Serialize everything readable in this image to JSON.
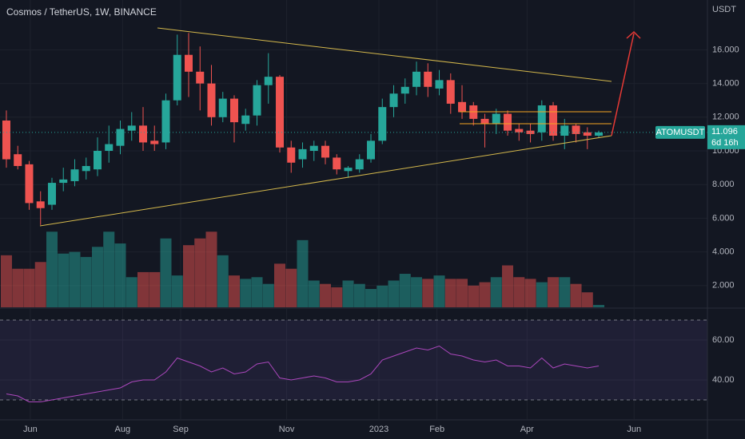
{
  "chart_data": [
    {
      "type": "candlestick",
      "title": "Cosmos / TetherUS, 1W, BINANCE",
      "axis_label": "USDT",
      "categories": [
        null,
        null,
        null,
        null,
        null,
        null,
        null,
        null,
        null,
        null,
        null,
        null,
        null,
        null,
        null,
        null,
        null,
        null,
        null,
        null,
        null,
        null,
        null,
        null,
        null,
        null,
        null,
        null,
        null,
        null,
        null,
        null,
        null,
        null,
        null,
        null,
        null,
        null,
        null,
        null,
        null,
        null,
        null,
        null,
        null,
        null,
        null,
        null,
        null,
        null,
        null,
        null,
        null
      ],
      "open": [
        11.8,
        9.8,
        9.2,
        7.0,
        6.8,
        8.1,
        8.2,
        8.8,
        8.9,
        10.0,
        10.3,
        11.2,
        11.5,
        10.6,
        10.5,
        13.0,
        15.7,
        14.7,
        14.0,
        12.0,
        13.1,
        11.6,
        12.1,
        13.9,
        14.4,
        10.2,
        9.5,
        10.0,
        10.3,
        9.6,
        8.8,
        8.9,
        9.5,
        10.6,
        12.6,
        13.4,
        13.8,
        14.7,
        13.7,
        14.2,
        12.9,
        12.7,
        11.9,
        11.6,
        12.2,
        11.3,
        11.2,
        11.1,
        12.7,
        10.9,
        11.5,
        11.1,
        10.9
      ],
      "high": [
        12.4,
        10.3,
        9.4,
        7.6,
        8.4,
        9.0,
        9.5,
        9.6,
        10.8,
        11.5,
        11.8,
        12.3,
        12.6,
        11.5,
        13.4,
        16.9,
        17.0,
        16.2,
        15.1,
        13.5,
        13.3,
        12.5,
        14.2,
        15.8,
        14.5,
        10.6,
        10.5,
        10.6,
        10.6,
        9.8,
        9.1,
        9.8,
        11.0,
        13.1,
        13.9,
        14.3,
        15.3,
        15.2,
        14.8,
        14.6,
        13.9,
        12.9,
        12.2,
        12.5,
        12.4,
        11.6,
        11.6,
        13.0,
        12.9,
        11.9,
        11.6,
        11.4,
        11.2
      ],
      "low": [
        9.0,
        8.9,
        6.5,
        5.6,
        6.5,
        7.6,
        7.9,
        8.3,
        8.5,
        9.3,
        9.8,
        10.6,
        10.0,
        10.0,
        10.1,
        12.7,
        13.2,
        12.4,
        11.5,
        11.7,
        10.5,
        11.2,
        11.5,
        12.8,
        9.9,
        8.7,
        9.0,
        9.4,
        9.2,
        8.6,
        8.4,
        8.7,
        9.3,
        10.4,
        12.0,
        12.8,
        13.3,
        13.2,
        13.3,
        12.2,
        11.9,
        11.5,
        10.2,
        11.0,
        10.9,
        10.6,
        10.5,
        10.6,
        10.6,
        10.1,
        10.5,
        10.1,
        10.8
      ],
      "close": [
        9.5,
        9.1,
        6.9,
        6.6,
        8.1,
        8.3,
        8.9,
        9.1,
        10.0,
        10.4,
        11.3,
        11.5,
        10.5,
        10.4,
        13.0,
        15.7,
        14.7,
        14.0,
        12.0,
        13.1,
        11.7,
        12.1,
        13.9,
        14.4,
        10.2,
        9.3,
        10.1,
        10.3,
        9.6,
        8.9,
        9.0,
        9.5,
        10.6,
        12.6,
        13.4,
        13.8,
        14.7,
        13.8,
        14.2,
        12.8,
        12.3,
        11.9,
        11.6,
        12.2,
        11.2,
        11.1,
        11.0,
        12.7,
        10.9,
        11.5,
        11.0,
        10.9,
        11.096
      ],
      "volume": [
        3.8,
        3.0,
        3.0,
        3.4,
        5.2,
        3.9,
        4.0,
        3.7,
        4.3,
        5.2,
        4.5,
        2.5,
        2.8,
        2.8,
        4.8,
        2.6,
        4.4,
        4.8,
        5.2,
        3.8,
        2.6,
        2.4,
        2.5,
        2.1,
        3.3,
        3.0,
        4.7,
        2.3,
        2.1,
        1.9,
        2.3,
        2.1,
        1.8,
        2.0,
        2.3,
        2.7,
        2.5,
        2.4,
        2.6,
        2.4,
        2.4,
        2.0,
        2.2,
        2.5,
        3.2,
        2.5,
        2.4,
        2.2,
        2.5,
        2.5,
        2.1,
        1.6,
        0.85
      ],
      "up_color": "#26a69a",
      "down_color": "#ef5350",
      "last_price": 11.096,
      "last_price_label": "11.096",
      "symbol": "ATOMUSDT",
      "countdown": "6d 16h",
      "xlim": [
        -0.56,
        61.54
      ],
      "xticks": [
        {
          "value": 2.1,
          "label": "Jun"
        },
        {
          "value": 10.2,
          "label": "Aug"
        },
        {
          "value": 15.3,
          "label": "Sep"
        },
        {
          "value": 24.6,
          "label": "Nov"
        },
        {
          "value": 32.7,
          "label": "2023"
        },
        {
          "value": 37.8,
          "label": "Feb"
        },
        {
          "value": 45.7,
          "label": "Apr"
        },
        {
          "value": 55.1,
          "label": "Jun"
        }
      ],
      "ylim": [
        0.711,
        18.957
      ],
      "yticks": [
        {
          "value": 16,
          "label": "16.000"
        },
        {
          "value": 14,
          "label": "14.000"
        },
        {
          "value": 12,
          "label": "12.000"
        },
        {
          "value": 10,
          "label": "10.000"
        },
        {
          "value": 8,
          "label": "8.000"
        },
        {
          "value": 6,
          "label": "6.000"
        },
        {
          "value": 4,
          "label": "4.000"
        },
        {
          "value": 2,
          "label": "2.000"
        }
      ],
      "grid": true
    },
    {
      "type": "line",
      "values": [
        33,
        32,
        29,
        29,
        30,
        31,
        32,
        33,
        34,
        35,
        36,
        39,
        40,
        40,
        44,
        51,
        49,
        47,
        44,
        46,
        43,
        44,
        48,
        49,
        41,
        40,
        41,
        42,
        41,
        39,
        39,
        40,
        43,
        50,
        52,
        54,
        56,
        55,
        57,
        53,
        52,
        50,
        49,
        50,
        47,
        47,
        46,
        51,
        46,
        48,
        47,
        46,
        47
      ],
      "color": "#ab47bc",
      "bands": [
        70,
        30
      ],
      "ylim": [
        20.4,
        75.6
      ],
      "yticks": [
        {
          "value": 60,
          "label": "60.00"
        },
        {
          "value": 40,
          "label": "40.00"
        }
      ],
      "grid": true
    }
  ]
}
